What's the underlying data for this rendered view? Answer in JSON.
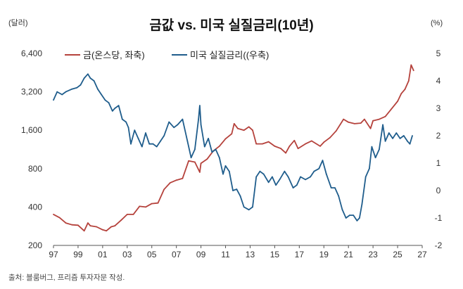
{
  "title": "금값 vs. 미국 실질금리(10년)",
  "left_unit": "(달러)",
  "right_unit": "(%)",
  "source": "출처: 블룸버그, 프리즘 투자자문 작성.",
  "colors": {
    "gold": "#b5423c",
    "rate": "#1f5d8c",
    "axis": "#555555"
  },
  "chart_data": {
    "type": "line",
    "title": "금값 vs. 미국 실질금리(10년)",
    "xlabel": "",
    "x_ticks": [
      "97",
      "99",
      "01",
      "03",
      "05",
      "07",
      "09",
      "11",
      "13",
      "15",
      "17",
      "19",
      "21",
      "23",
      "25",
      "27"
    ],
    "xlim": [
      1997,
      2027
    ],
    "left_axis": {
      "label": "(달러)",
      "scale": "log",
      "ylim": [
        200,
        6400
      ],
      "ticks": [
        200,
        400,
        800,
        1600,
        3200,
        6400
      ],
      "tick_labels": [
        "200",
        "400",
        "800",
        "1,600",
        "3,200",
        "6,400"
      ]
    },
    "right_axis": {
      "label": "(%)",
      "scale": "linear",
      "ylim": [
        -2,
        5
      ],
      "ticks": [
        -2,
        -1,
        0,
        1,
        2,
        3,
        4,
        5
      ],
      "tick_labels": [
        "-2",
        "-1",
        "0",
        "1",
        "2",
        "3",
        "4",
        "5"
      ]
    },
    "legend_position": "top-left",
    "series": [
      {
        "name": "금(온스당, 좌축)",
        "axis": "left",
        "points": [
          [
            1997.0,
            350
          ],
          [
            1997.5,
            330
          ],
          [
            1998.0,
            300
          ],
          [
            1998.5,
            290
          ],
          [
            1999.0,
            288
          ],
          [
            1999.5,
            260
          ],
          [
            1999.8,
            300
          ],
          [
            2000.0,
            285
          ],
          [
            2000.5,
            280
          ],
          [
            2001.0,
            265
          ],
          [
            2001.3,
            260
          ],
          [
            2001.7,
            280
          ],
          [
            2002.0,
            285
          ],
          [
            2002.5,
            315
          ],
          [
            2003.0,
            350
          ],
          [
            2003.5,
            350
          ],
          [
            2004.0,
            405
          ],
          [
            2004.5,
            400
          ],
          [
            2005.0,
            425
          ],
          [
            2005.5,
            430
          ],
          [
            2006.0,
            550
          ],
          [
            2006.5,
            620
          ],
          [
            2007.0,
            650
          ],
          [
            2007.5,
            670
          ],
          [
            2008.0,
            920
          ],
          [
            2008.5,
            900
          ],
          [
            2008.9,
            750
          ],
          [
            2009.0,
            880
          ],
          [
            2009.5,
            950
          ],
          [
            2010.0,
            1100
          ],
          [
            2010.5,
            1200
          ],
          [
            2011.0,
            1370
          ],
          [
            2011.5,
            1500
          ],
          [
            2011.7,
            1800
          ],
          [
            2012.0,
            1650
          ],
          [
            2012.5,
            1600
          ],
          [
            2012.9,
            1700
          ],
          [
            2013.2,
            1600
          ],
          [
            2013.5,
            1250
          ],
          [
            2014.0,
            1250
          ],
          [
            2014.5,
            1300
          ],
          [
            2015.0,
            1200
          ],
          [
            2015.5,
            1150
          ],
          [
            2015.9,
            1060
          ],
          [
            2016.2,
            1200
          ],
          [
            2016.6,
            1330
          ],
          [
            2016.9,
            1150
          ],
          [
            2017.5,
            1250
          ],
          [
            2018.0,
            1320
          ],
          [
            2018.7,
            1200
          ],
          [
            2019.0,
            1290
          ],
          [
            2019.5,
            1400
          ],
          [
            2020.0,
            1580
          ],
          [
            2020.6,
            1950
          ],
          [
            2021.0,
            1850
          ],
          [
            2021.5,
            1800
          ],
          [
            2022.0,
            1820
          ],
          [
            2022.3,
            1950
          ],
          [
            2022.8,
            1650
          ],
          [
            2023.0,
            1900
          ],
          [
            2023.5,
            1950
          ],
          [
            2024.0,
            2050
          ],
          [
            2024.5,
            2350
          ],
          [
            2025.0,
            2700
          ],
          [
            2025.3,
            3100
          ],
          [
            2025.6,
            3350
          ],
          [
            2025.9,
            3900
          ],
          [
            2026.1,
            5200
          ],
          [
            2026.3,
            4700
          ]
        ]
      },
      {
        "name": "미국 실질금리((우축)",
        "axis": "right",
        "points": [
          [
            1997.0,
            3.3
          ],
          [
            1997.3,
            3.6
          ],
          [
            1997.7,
            3.5
          ],
          [
            1998.0,
            3.6
          ],
          [
            1998.5,
            3.7
          ],
          [
            1998.9,
            3.75
          ],
          [
            1999.2,
            3.85
          ],
          [
            1999.5,
            4.1
          ],
          [
            1999.8,
            4.25
          ],
          [
            2000.0,
            4.1
          ],
          [
            2000.3,
            4.0
          ],
          [
            2000.6,
            3.7
          ],
          [
            2000.9,
            3.5
          ],
          [
            2001.2,
            3.3
          ],
          [
            2001.5,
            3.2
          ],
          [
            2001.8,
            2.9
          ],
          [
            2002.0,
            3.0
          ],
          [
            2002.3,
            3.1
          ],
          [
            2002.6,
            2.6
          ],
          [
            2002.9,
            2.5
          ],
          [
            2003.1,
            2.3
          ],
          [
            2003.3,
            1.7
          ],
          [
            2003.6,
            2.2
          ],
          [
            2003.9,
            1.9
          ],
          [
            2004.2,
            1.6
          ],
          [
            2004.5,
            2.1
          ],
          [
            2004.8,
            1.7
          ],
          [
            2005.1,
            1.7
          ],
          [
            2005.4,
            1.6
          ],
          [
            2005.7,
            1.8
          ],
          [
            2006.0,
            2.0
          ],
          [
            2006.4,
            2.5
          ],
          [
            2006.8,
            2.3
          ],
          [
            2007.1,
            2.4
          ],
          [
            2007.5,
            2.6
          ],
          [
            2007.9,
            1.8
          ],
          [
            2008.2,
            1.2
          ],
          [
            2008.5,
            1.5
          ],
          [
            2008.8,
            2.6
          ],
          [
            2008.9,
            3.1
          ],
          [
            2009.0,
            2.4
          ],
          [
            2009.3,
            1.6
          ],
          [
            2009.6,
            1.9
          ],
          [
            2009.9,
            1.4
          ],
          [
            2010.2,
            1.5
          ],
          [
            2010.5,
            1.2
          ],
          [
            2010.8,
            0.6
          ],
          [
            2011.0,
            0.9
          ],
          [
            2011.3,
            0.7
          ],
          [
            2011.6,
            0.0
          ],
          [
            2011.9,
            0.05
          ],
          [
            2012.2,
            -0.2
          ],
          [
            2012.5,
            -0.6
          ],
          [
            2012.9,
            -0.7
          ],
          [
            2013.2,
            -0.6
          ],
          [
            2013.5,
            0.5
          ],
          [
            2013.8,
            0.7
          ],
          [
            2014.1,
            0.6
          ],
          [
            2014.5,
            0.3
          ],
          [
            2014.8,
            0.5
          ],
          [
            2015.1,
            0.2
          ],
          [
            2015.4,
            0.4
          ],
          [
            2015.8,
            0.7
          ],
          [
            2016.1,
            0.5
          ],
          [
            2016.5,
            0.1
          ],
          [
            2016.8,
            0.2
          ],
          [
            2017.1,
            0.5
          ],
          [
            2017.5,
            0.4
          ],
          [
            2017.9,
            0.5
          ],
          [
            2018.2,
            0.7
          ],
          [
            2018.6,
            0.8
          ],
          [
            2018.9,
            1.1
          ],
          [
            2019.2,
            0.6
          ],
          [
            2019.6,
            0.1
          ],
          [
            2019.9,
            0.1
          ],
          [
            2020.2,
            -0.2
          ],
          [
            2020.5,
            -0.7
          ],
          [
            2020.8,
            -1.0
          ],
          [
            2021.1,
            -0.9
          ],
          [
            2021.4,
            -0.9
          ],
          [
            2021.7,
            -1.1
          ],
          [
            2021.9,
            -1.0
          ],
          [
            2022.1,
            -0.5
          ],
          [
            2022.4,
            0.5
          ],
          [
            2022.7,
            0.8
          ],
          [
            2022.9,
            1.6
          ],
          [
            2023.2,
            1.2
          ],
          [
            2023.5,
            1.5
          ],
          [
            2023.8,
            2.4
          ],
          [
            2024.0,
            1.8
          ],
          [
            2024.3,
            2.1
          ],
          [
            2024.6,
            1.9
          ],
          [
            2024.9,
            2.1
          ],
          [
            2025.2,
            1.9
          ],
          [
            2025.5,
            2.0
          ],
          [
            2025.8,
            1.8
          ],
          [
            2026.0,
            1.7
          ],
          [
            2026.2,
            2.0
          ]
        ]
      }
    ]
  }
}
